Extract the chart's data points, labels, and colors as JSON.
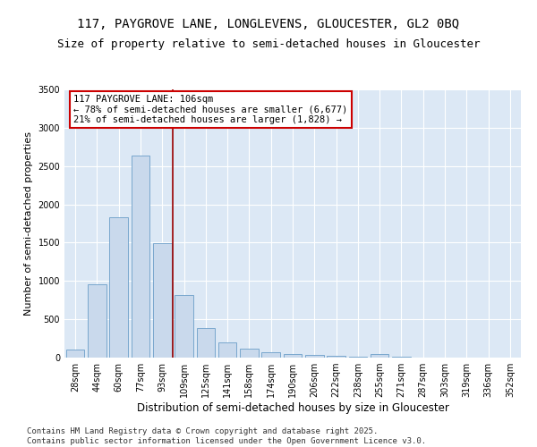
{
  "title1": "117, PAYGROVE LANE, LONGLEVENS, GLOUCESTER, GL2 0BQ",
  "title2": "Size of property relative to semi-detached houses in Gloucester",
  "xlabel": "Distribution of semi-detached houses by size in Gloucester",
  "ylabel": "Number of semi-detached properties",
  "bin_labels": [
    "28sqm",
    "44sqm",
    "60sqm",
    "77sqm",
    "93sqm",
    "109sqm",
    "125sqm",
    "141sqm",
    "158sqm",
    "174sqm",
    "190sqm",
    "206sqm",
    "222sqm",
    "238sqm",
    "255sqm",
    "271sqm",
    "287sqm",
    "303sqm",
    "319sqm",
    "336sqm",
    "352sqm"
  ],
  "bar_values": [
    110,
    960,
    1830,
    2640,
    1490,
    820,
    390,
    195,
    115,
    70,
    45,
    30,
    20,
    15,
    50,
    10,
    5,
    5,
    5,
    3,
    3
  ],
  "bar_color": "#c9d9ec",
  "bar_edge_color": "#6a9ec8",
  "bar_width": 0.85,
  "vline_x": 4.5,
  "vline_color": "#990000",
  "annotation_title": "117 PAYGROVE LANE: 106sqm",
  "annotation_line1": "← 78% of semi-detached houses are smaller (6,677)",
  "annotation_line2": "21% of semi-detached houses are larger (1,828) →",
  "annotation_box_color": "#ffffff",
  "annotation_box_edge": "#cc0000",
  "ylim": [
    0,
    3500
  ],
  "yticks": [
    0,
    500,
    1000,
    1500,
    2000,
    2500,
    3000,
    3500
  ],
  "grid_color": "#ffffff",
  "bg_color": "#dce8f5",
  "footer1": "Contains HM Land Registry data © Crown copyright and database right 2025.",
  "footer2": "Contains public sector information licensed under the Open Government Licence v3.0.",
  "title1_fontsize": 10,
  "title2_fontsize": 9,
  "xlabel_fontsize": 8.5,
  "ylabel_fontsize": 8,
  "tick_fontsize": 7,
  "annotation_fontsize": 7.5,
  "footer_fontsize": 6.5
}
